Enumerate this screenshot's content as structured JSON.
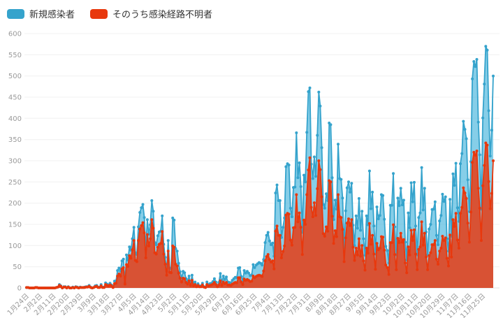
{
  "legend": {
    "items": [
      {
        "label": "新規感染者",
        "color": "#35a3cc"
      },
      {
        "label": "そのうち感染経路不明者",
        "color": "#e8380d"
      }
    ]
  },
  "chart_data": {
    "type": "area",
    "title": "",
    "xlabel": "",
    "ylabel": "",
    "x_unit": "daily",
    "x_start": "1月24日",
    "x_end": "12月2日",
    "x_tick_interval_days": 9,
    "x_tick_labels": [
      "1月24日",
      "2月2日",
      "2月11日",
      "2月20日",
      "2月29日",
      "3月9日",
      "3月18日",
      "3月27日",
      "4月5日",
      "4月14日",
      "4月23日",
      "5月2日",
      "5月11日",
      "5月20日",
      "5月29日",
      "6月7日",
      "6月16日",
      "6月25日",
      "7月4日",
      "7月13日",
      "7月22日",
      "7月31日",
      "8月9日",
      "8月18日",
      "8月27日",
      "9月5日",
      "9月14日",
      "9月23日",
      "10月2日",
      "10月11日",
      "10月20日",
      "10月29日",
      "11月7日",
      "11月16日",
      "11月25日"
    ],
    "y_ticks": [
      0,
      50,
      100,
      150,
      200,
      250,
      300,
      350,
      400,
      450,
      500,
      550,
      600
    ],
    "ylim": [
      0,
      600
    ],
    "grid": true,
    "legend_position": "top-left",
    "marker": "circle",
    "series": [
      {
        "name": "新規感染者",
        "color": "#35a3cc",
        "fill": "rgba(93,190,224,0.75)",
        "values": [
          1,
          1,
          0,
          0,
          0,
          0,
          1,
          1,
          0,
          0,
          0,
          0,
          0,
          0,
          0,
          0,
          0,
          0,
          0,
          0,
          1,
          2,
          8,
          5,
          0,
          3,
          3,
          0,
          3,
          0,
          0,
          2,
          0,
          3,
          2,
          0,
          2,
          1,
          1,
          2,
          3,
          3,
          6,
          2,
          0,
          1,
          5,
          6,
          2,
          2,
          8,
          2,
          2,
          12,
          9,
          7,
          11,
          7,
          2,
          16,
          17,
          41,
          47,
          40,
          64,
          68,
          13,
          78,
          66,
          97,
          89,
          116,
          143,
          83,
          79,
          144,
          178,
          189,
          197,
          166,
          91,
          161,
          127,
          149,
          206,
          181,
          107,
          102,
          123,
          132,
          134,
          170,
          103,
          72,
          39,
          112,
          47,
          46,
          165,
          160,
          93,
          87,
          58,
          38,
          23,
          39,
          36,
          22,
          15,
          28,
          10,
          30,
          9,
          14,
          5,
          10,
          5,
          5,
          11,
          3,
          2,
          14,
          8,
          10,
          11,
          15,
          22,
          14,
          5,
          13,
          34,
          12,
          28,
          20,
          26,
          14,
          13,
          12,
          18,
          22,
          25,
          24,
          47,
          48,
          27,
          16,
          41,
          35,
          39,
          35,
          29,
          31,
          55,
          48,
          54,
          57,
          60,
          58,
          54,
          67,
          107,
          124,
          131,
          111,
          102,
          106,
          75,
          224,
          243,
          206,
          206,
          119,
          143,
          165,
          286,
          293,
          290,
          188,
          168,
          237,
          238,
          366,
          260,
          295,
          239,
          131,
          266,
          250,
          367,
          463,
          472,
          292,
          258,
          309,
          263,
          360,
          462,
          429,
          331,
          197,
          188,
          222,
          206,
          389,
          385,
          260,
          161,
          207,
          186,
          339,
          258,
          256,
          212,
          95,
          182,
          236,
          250,
          226,
          247,
          148,
          100,
          170,
          141,
          211,
          136,
          181,
          116,
          77,
          170,
          149,
          276,
          187,
          226,
          146,
          80,
          191,
          163,
          171,
          220,
          218,
          162,
          98,
          88,
          59,
          195,
          195,
          270,
          144,
          78,
          212,
          194,
          235,
          196,
          207,
          108,
          66,
          177,
          142,
          248,
          203,
          249,
          146,
          78,
          166,
          177,
          284,
          184,
          235,
          132,
          78,
          139,
          150,
          185,
          186,
          203,
          124,
          102,
          158,
          171,
          221,
          204,
          215,
          116,
          87,
          209,
          122,
          269,
          242,
          294,
          189,
          157,
          293,
          317,
          393,
          374,
          352,
          255,
          180,
          298,
          493,
          534,
          522,
          539,
          391,
          314,
          186,
          401,
          481,
          570,
          561,
          418,
          311,
          372,
          500
        ]
      },
      {
        "name": "そのうち感染経路不明者",
        "color": "#e8380d",
        "fill": "rgba(230,60,20,0.85)",
        "values": [
          1,
          1,
          0,
          0,
          0,
          0,
          1,
          1,
          0,
          0,
          0,
          0,
          0,
          0,
          0,
          0,
          0,
          0,
          0,
          0,
          1,
          2,
          6,
          4,
          0,
          2,
          2,
          0,
          2,
          0,
          0,
          1,
          0,
          2,
          1,
          0,
          1,
          1,
          1,
          1,
          2,
          2,
          4,
          1,
          0,
          1,
          3,
          4,
          1,
          1,
          5,
          1,
          1,
          8,
          6,
          5,
          7,
          5,
          1,
          10,
          11,
          28,
          33,
          28,
          45,
          48,
          9,
          55,
          51,
          76,
          70,
          90,
          112,
          65,
          62,
          112,
          139,
          147,
          154,
          130,
          71,
          126,
          99,
          116,
          161,
          141,
          83,
          80,
          96,
          103,
          105,
          133,
          80,
          56,
          30,
          87,
          37,
          36,
          99,
          96,
          56,
          52,
          35,
          23,
          14,
          23,
          22,
          13,
          9,
          17,
          6,
          18,
          5,
          8,
          3,
          6,
          3,
          3,
          7,
          2,
          1,
          8,
          5,
          6,
          7,
          9,
          13,
          8,
          3,
          7,
          17,
          6,
          14,
          10,
          13,
          7,
          7,
          6,
          9,
          11,
          13,
          12,
          24,
          24,
          14,
          8,
          21,
          18,
          20,
          18,
          15,
          16,
          28,
          24,
          27,
          29,
          30,
          29,
          27,
          40,
          64,
          74,
          79,
          67,
          61,
          64,
          45,
          134,
          146,
          124,
          124,
          71,
          86,
          99,
          172,
          176,
          174,
          113,
          101,
          142,
          143,
          220,
          156,
          177,
          143,
          79,
          160,
          150,
          220,
          278,
          307,
          190,
          168,
          201,
          171,
          234,
          300,
          279,
          215,
          128,
          122,
          144,
          134,
          253,
          250,
          169,
          105,
          135,
          121,
          220,
          168,
          166,
          138,
          62,
          118,
          153,
          163,
          147,
          161,
          96,
          65,
          94,
          78,
          116,
          75,
          100,
          64,
          42,
          94,
          82,
          152,
          103,
          124,
          80,
          44,
          105,
          90,
          94,
          121,
          120,
          89,
          54,
          48,
          32,
          107,
          107,
          149,
          79,
          43,
          117,
          107,
          129,
          108,
          114,
          59,
          36,
          97,
          78,
          136,
          112,
          137,
          80,
          43,
          91,
          97,
          156,
          101,
          129,
          73,
          43,
          76,
          83,
          102,
          102,
          112,
          68,
          56,
          87,
          94,
          122,
          112,
          118,
          70,
          52,
          125,
          73,
          161,
          145,
          176,
          113,
          94,
          176,
          190,
          236,
          224,
          211,
          153,
          108,
          179,
          296,
          320,
          313,
          323,
          235,
          188,
          112,
          241,
          289,
          342,
          337,
          251,
          187,
          223,
          300
        ]
      }
    ]
  }
}
